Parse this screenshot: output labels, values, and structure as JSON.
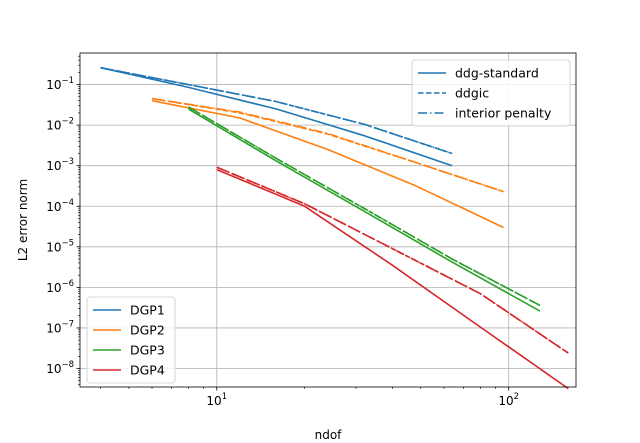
{
  "chart_data": {
    "type": "line",
    "title": "",
    "xlabel": "ndof",
    "ylabel": "L2 error norm",
    "xscale": "log",
    "yscale": "log",
    "xlim": [
      3.4,
      170
    ],
    "ylim": [
      3.5e-09,
      0.6
    ],
    "grid": true,
    "x_ticks": [
      {
        "value": 10,
        "base": "10",
        "exp": "1"
      },
      {
        "value": 100,
        "base": "10",
        "exp": "2"
      }
    ],
    "y_ticks": [
      {
        "value": 1e-08,
        "base": "10",
        "exp": "−8"
      },
      {
        "value": 1e-07,
        "base": "10",
        "exp": "−7"
      },
      {
        "value": 1e-06,
        "base": "10",
        "exp": "−6"
      },
      {
        "value": 1e-05,
        "base": "10",
        "exp": "−5"
      },
      {
        "value": 0.0001,
        "base": "10",
        "exp": "−4"
      },
      {
        "value": 0.001,
        "base": "10",
        "exp": "−3"
      },
      {
        "value": 0.01,
        "base": "10",
        "exp": "−2"
      },
      {
        "value": 0.1,
        "base": "10",
        "exp": "−1"
      }
    ],
    "legend_methods": {
      "placement": "top-right",
      "entries": [
        {
          "label": "ddg-standard",
          "style": "solid"
        },
        {
          "label": "ddgic",
          "style": "dashed"
        },
        {
          "label": "interior penalty",
          "style": "dashdot"
        }
      ]
    },
    "legend_degrees": {
      "placement": "lower-left",
      "entries": [
        {
          "label": "DGP1",
          "color": "#1f77b4"
        },
        {
          "label": "DGP2",
          "color": "#ff7f0e"
        },
        {
          "label": "DGP3",
          "color": "#2ca02c"
        },
        {
          "label": "DGP4",
          "color": "#d62728"
        }
      ]
    },
    "series": [
      {
        "degree": "DGP1",
        "method": "ddg-standard",
        "color": "#1f77b4",
        "style": "solid",
        "x": [
          4,
          8,
          16,
          32,
          64
        ],
        "y": [
          0.26,
          0.085,
          0.025,
          0.0055,
          0.001
        ]
      },
      {
        "degree": "DGP1",
        "method": "ddgic",
        "color": "#1f77b4",
        "style": "dashed",
        "x": [
          4,
          8,
          16,
          32,
          64
        ],
        "y": [
          0.26,
          0.1,
          0.038,
          0.0105,
          0.002
        ]
      },
      {
        "degree": "DGP1",
        "method": "interior penalty",
        "color": "#1f77b4",
        "style": "dashdot",
        "x": [
          4,
          8,
          16,
          32,
          64
        ],
        "y": [
          0.26,
          0.1,
          0.038,
          0.0105,
          0.002
        ]
      },
      {
        "degree": "DGP2",
        "method": "ddg-standard",
        "color": "#ff7f0e",
        "style": "solid",
        "x": [
          6,
          12,
          24,
          48,
          96
        ],
        "y": [
          0.04,
          0.015,
          0.0025,
          0.00032,
          3e-05
        ]
      },
      {
        "degree": "DGP2",
        "method": "ddgic",
        "color": "#ff7f0e",
        "style": "dashed",
        "x": [
          6,
          12,
          24,
          48,
          96
        ],
        "y": [
          0.045,
          0.02,
          0.006,
          0.0012,
          0.00023
        ]
      },
      {
        "degree": "DGP2",
        "method": "interior penalty",
        "color": "#ff7f0e",
        "style": "dashdot",
        "x": [
          6,
          12,
          24,
          48,
          96
        ],
        "y": [
          0.045,
          0.021,
          0.0062,
          0.0012,
          0.00023
        ]
      },
      {
        "degree": "DGP3",
        "method": "ddg-standard",
        "color": "#2ca02c",
        "style": "solid",
        "x": [
          8,
          16,
          32,
          64,
          128
        ],
        "y": [
          0.025,
          0.0013,
          7.5e-05,
          4.2e-06,
          2.6e-07
        ]
      },
      {
        "degree": "DGP3",
        "method": "ddgic",
        "color": "#2ca02c",
        "style": "dashed",
        "x": [
          8,
          16,
          32,
          64,
          128
        ],
        "y": [
          0.028,
          0.0015,
          8.8e-05,
          5e-06,
          3.6e-07
        ]
      },
      {
        "degree": "DGP3",
        "method": "interior penalty",
        "color": "#2ca02c",
        "style": "dashdot",
        "x": [
          8,
          16,
          32,
          64,
          128
        ],
        "y": [
          0.028,
          0.0015,
          8.8e-05,
          5e-06,
          3.6e-07
        ]
      },
      {
        "degree": "DGP4",
        "method": "ddg-standard",
        "color": "#d62728",
        "style": "solid",
        "x": [
          10,
          20,
          40,
          80,
          160
        ],
        "y": [
          0.0008,
          0.0001,
          3.5e-06,
          1.05e-07,
          3.2e-09
        ]
      },
      {
        "degree": "DGP4",
        "method": "ddgic",
        "color": "#d62728",
        "style": "dashed",
        "x": [
          10,
          20,
          40,
          80,
          160
        ],
        "y": [
          0.00092,
          0.000115,
          9e-06,
          7e-07,
          2.4e-08
        ]
      },
      {
        "degree": "DGP4",
        "method": "interior penalty",
        "color": "#d62728",
        "style": "dashdot",
        "x": [
          10,
          20,
          40,
          80,
          160
        ],
        "y": [
          0.00092,
          0.000115,
          9e-06,
          7e-07,
          2.4e-08
        ]
      }
    ]
  }
}
